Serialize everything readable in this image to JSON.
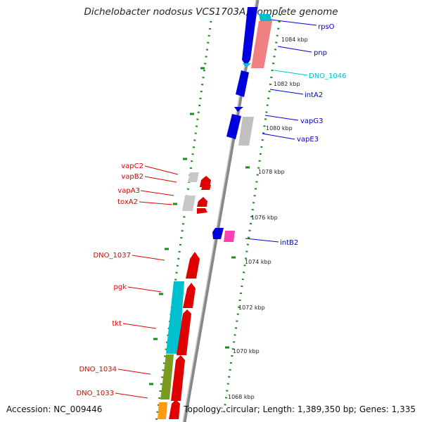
{
  "title": "Dichelobacter nodosus VCS1703A, complete genome",
  "footer": {
    "accession": "Accession: NC_009446",
    "summary": "Topology: circular; Length: 1,389,350 bp; Genes: 1,335"
  },
  "colors": {
    "forward_cds": "#e00000",
    "reverse_cds": "#0000dd",
    "hypothetical": "#c8c8c8",
    "rna": "#00c0d0",
    "other": "#ff40b0",
    "olive": "#7a9a20",
    "orange": "#ff9a10",
    "salmon": "#f08080",
    "ruler": "#1a8a1a",
    "backbone": "#888888"
  },
  "scale_labels": [
    "1084 kbp",
    "1082 kbp",
    "1080 kbp",
    "1078 kbp",
    "1076 kbp",
    "1074 kbp",
    "1072 kbp",
    "1070 kbp",
    "1068 kbp"
  ],
  "gene_labels_right": [
    "rpsO",
    "pnp",
    "DNO_1046",
    "intA2",
    "vapG3",
    "vapE3",
    "intB2"
  ],
  "gene_labels_left": [
    "vapC2",
    "vapB2",
    "vapA3",
    "toxA2",
    "DNO_1037",
    "pgk",
    "tkt",
    "DNO_1034",
    "DNO_1033"
  ]
}
